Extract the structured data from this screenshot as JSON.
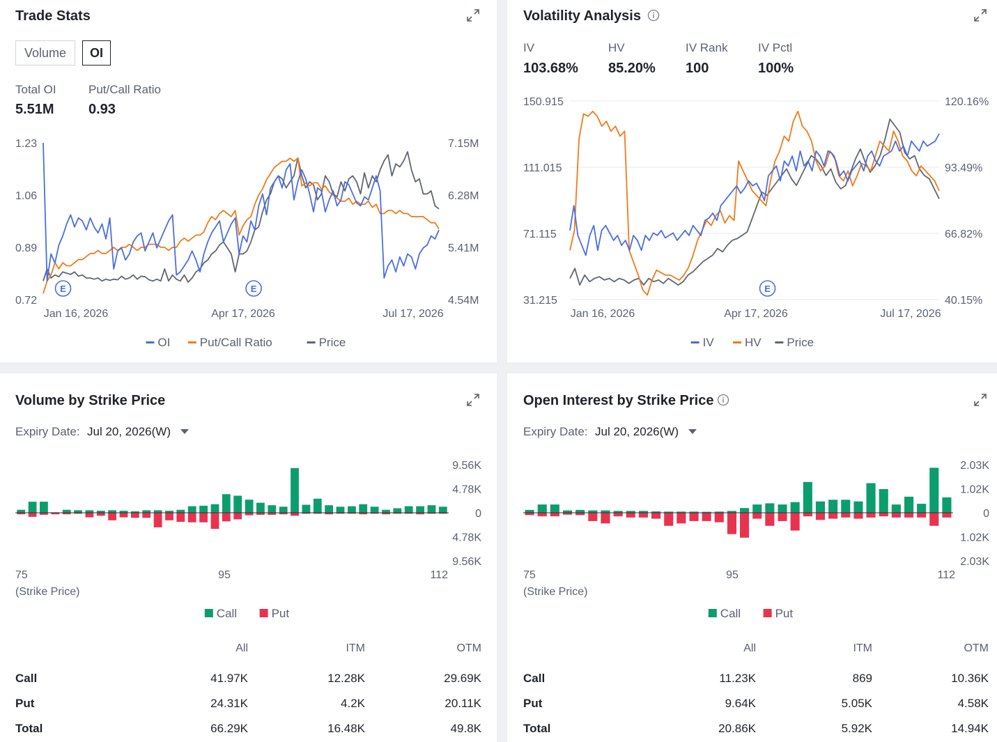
{
  "colors": {
    "blue": "#4a6ee0",
    "orange": "#f07a1a",
    "gray": "#5f6670",
    "green": "#0b9e6c",
    "red": "#e8334f",
    "axis_text": "#5a6170",
    "grid": "#e8eaed"
  },
  "icons": {
    "expand": "expand-icon",
    "info": "info-icon",
    "earnings": "earnings-marker-icon",
    "dropdown": "caret-down-icon"
  },
  "trade_stats": {
    "title": "Trade Stats",
    "segments": [
      "Volume",
      "OI"
    ],
    "active_segment": "OI",
    "total_oi_label": "Total OI",
    "total_oi_value": "5.51M",
    "pcr_label": "Put/Call Ratio",
    "pcr_value": "0.93"
  },
  "volatility": {
    "title": "Volatility Analysis",
    "iv_label": "IV",
    "iv_value": "103.68%",
    "hv_label": "HV",
    "hv_value": "85.20%",
    "ivrank_label": "IV Rank",
    "ivrank_value": "100",
    "ivpctl_label": "IV Pctl",
    "ivpctl_value": "100%"
  },
  "volume_strike": {
    "title": "Volume by Strike Price",
    "expiry_label": "Expiry Date:",
    "expiry_value": "Jul 20, 2026(W)",
    "table": {
      "headers": [
        "All",
        "ITM",
        "OTM"
      ],
      "rows": [
        {
          "label": "Call",
          "all": "41.97K",
          "itm": "12.28K",
          "otm": "29.69K"
        },
        {
          "label": "Put",
          "all": "24.31K",
          "itm": "4.2K",
          "otm": "20.11K"
        },
        {
          "label": "Total",
          "all": "66.29K",
          "itm": "16.48K",
          "otm": "49.8K"
        }
      ]
    }
  },
  "oi_strike": {
    "title": "Open Interest by Strike Price",
    "expiry_label": "Expiry Date:",
    "expiry_value": "Jul 20, 2026(W)",
    "table": {
      "headers": [
        "All",
        "ITM",
        "OTM"
      ],
      "rows": [
        {
          "label": "Call",
          "all": "11.23K",
          "itm": "869",
          "otm": "10.36K"
        },
        {
          "label": "Put",
          "all": "9.64K",
          "itm": "5.05K",
          "otm": "4.58K"
        },
        {
          "label": "Total",
          "all": "20.86K",
          "itm": "5.92K",
          "otm": "14.94K"
        }
      ]
    }
  },
  "chart_data": [
    {
      "type": "line",
      "x_ticks": [
        "Jan 16, 2026",
        "Apr 17, 2026",
        "Jul 17, 2026"
      ],
      "left_axis_ticks": [
        "1.23",
        "1.06",
        "0.89",
        "0.72"
      ],
      "right_axis_ticks": [
        "7.15M",
        "6.28M",
        "5.41M",
        "4.54M"
      ],
      "left_range": [
        0.72,
        1.23
      ],
      "right_range": [
        4.54,
        7.15
      ],
      "right_unit": "M",
      "earnings_markers": [
        "E",
        "E"
      ],
      "earnings_positions": [
        0.05,
        0.53
      ],
      "legend": "bottom-center",
      "grid": false,
      "series": [
        {
          "name": "OI",
          "axis": "right",
          "color": "#4a6ee0",
          "values": [
            7.15,
            4.85,
            5.3,
            5.15,
            5.45,
            5.6,
            5.8,
            5.95,
            5.75,
            5.9,
            5.85,
            5.7,
            5.9,
            5.75,
            5.65,
            5.8,
            5.55,
            5.9,
            5.05,
            5.35,
            5.4,
            5.2,
            5.3,
            5.5,
            5.6,
            5.65,
            5.35,
            5.5,
            5.65,
            5.4,
            5.55,
            5.7,
            5.85,
            5.95,
            4.95,
            5.0,
            5.1,
            5.2,
            5.35,
            5.2,
            5.0,
            5.3,
            5.5,
            5.65,
            5.75,
            5.85,
            5.5,
            5.65,
            5.8,
            5.9,
            5.3,
            5.6,
            5.5,
            5.85,
            5.7,
            6.1,
            6.3,
            5.95,
            6.4,
            6.5,
            6.6,
            6.4,
            6.7,
            6.8,
            6.2,
            6.5,
            6.7,
            6.55,
            6.3,
            6.0,
            6.4,
            6.35,
            6.0,
            6.2,
            6.35,
            6.1,
            6.2,
            6.5,
            6.45,
            6.3,
            6.15,
            6.1,
            6.25,
            6.2,
            6.4,
            6.6,
            6.35,
            4.9,
            5.1,
            5.2,
            5.0,
            5.25,
            5.1,
            5.3,
            5.25,
            5.05,
            5.3,
            5.4,
            5.45,
            5.6,
            5.55,
            5.7
          ]
        },
        {
          "name": "Put/Call Ratio",
          "axis": "left",
          "color": "#f07a1a",
          "values": [
            0.74,
            0.78,
            0.8,
            0.84,
            0.82,
            0.84,
            0.83,
            0.83,
            0.84,
            0.85,
            0.85,
            0.86,
            0.87,
            0.87,
            0.88,
            0.87,
            0.87,
            0.88,
            0.89,
            0.88,
            0.89,
            0.89,
            0.9,
            0.89,
            0.88,
            0.89,
            0.89,
            0.9,
            0.9,
            0.9,
            0.89,
            0.89,
            0.88,
            0.89,
            0.89,
            0.91,
            0.92,
            0.91,
            0.92,
            0.93,
            0.93,
            0.94,
            0.97,
            0.99,
            0.98,
            1.0,
            1.01,
            1.0,
            0.99,
            1.01,
            0.93,
            0.96,
            0.98,
            0.99,
            1.03,
            1.06,
            1.08,
            1.11,
            1.13,
            1.15,
            1.16,
            1.17,
            1.17,
            1.18,
            1.17,
            1.18,
            1.09,
            1.1,
            1.09,
            1.1,
            1.1,
            1.08,
            1.09,
            1.07,
            1.06,
            1.05,
            1.04,
            1.04,
            1.05,
            1.03,
            1.04,
            1.03,
            1.03,
            1.04,
            1.02,
            1.03,
            1.0,
            1.0,
            1.01,
            1.01,
            1.0,
            1.01,
            1.0,
            1.0,
            0.99,
            0.99,
            0.99,
            0.99,
            0.98,
            0.97,
            0.97,
            0.95
          ]
        },
        {
          "name": "Price",
          "axis": "right",
          "color": "#5f6670",
          "values": [
            4.85,
            5.05,
            4.9,
            4.95,
            4.92,
            5.0,
            4.98,
            4.96,
            5.0,
            4.93,
            4.95,
            4.9,
            4.9,
            4.88,
            4.9,
            4.85,
            4.88,
            4.86,
            4.88,
            4.87,
            4.93,
            4.88,
            4.9,
            4.95,
            4.88,
            4.93,
            4.92,
            4.87,
            4.85,
            4.88,
            4.85,
            5.05,
            4.85,
            4.95,
            4.88,
            4.85,
            4.95,
            4.83,
            4.9,
            5.0,
            5.05,
            5.15,
            5.2,
            5.3,
            5.35,
            5.45,
            5.5,
            5.4,
            5.3,
            5.0,
            5.3,
            5.3,
            5.35,
            5.5,
            5.7,
            5.75,
            6.0,
            6.2,
            6.3,
            6.5,
            6.6,
            6.55,
            6.4,
            6.5,
            6.6,
            6.9,
            6.6,
            6.4,
            6.5,
            6.45,
            6.2,
            6.3,
            6.6,
            6.5,
            6.3,
            6.25,
            6.5,
            6.35,
            6.55,
            6.6,
            6.5,
            6.3,
            6.65,
            6.4,
            6.6,
            6.5,
            6.7,
            6.85,
            6.95,
            6.6,
            6.8,
            6.75,
            6.85,
            7.0,
            6.7,
            6.5,
            6.55,
            6.3,
            6.3,
            6.35,
            6.1,
            6.05
          ]
        }
      ]
    },
    {
      "type": "line",
      "x_ticks": [
        "Jan 16, 2026",
        "Apr 17, 2026",
        "Jul 17, 2026"
      ],
      "left_axis_ticks": [
        "150.915",
        "111.015",
        "71.115",
        "31.215"
      ],
      "right_axis_ticks": [
        "120.16%",
        "93.49%",
        "66.82%",
        "40.15%"
      ],
      "left_range": [
        31.215,
        150.915
      ],
      "right_range": [
        40.15,
        120.16
      ],
      "earnings_markers": [
        "E"
      ],
      "earnings_positions": [
        0.535
      ],
      "legend": "bottom-center",
      "grid": true,
      "series": [
        {
          "name": "IV",
          "axis": "right",
          "color": "#4a6ee0",
          "values": [
            68,
            78,
            66,
            62,
            58,
            66,
            70,
            60,
            68,
            70,
            67,
            64,
            66,
            62,
            64,
            60,
            66,
            64,
            60,
            66,
            64,
            67,
            66,
            68,
            65,
            66,
            67,
            64,
            66,
            68,
            66,
            70,
            68,
            66,
            72,
            73,
            75,
            72,
            78,
            80,
            82,
            84,
            86,
            83,
            85,
            88,
            86,
            87,
            84,
            80,
            90,
            92,
            94,
            88,
            96,
            94,
            98,
            92,
            100,
            94,
            96,
            92,
            100,
            98,
            94,
            100,
            99,
            96,
            90,
            92,
            88,
            92,
            94,
            96,
            92,
            98,
            100,
            96,
            94,
            98,
            99,
            100,
            104,
            100,
            102,
            98,
            104,
            102,
            100,
            104,
            102,
            103,
            104,
            107
          ]
        },
        {
          "name": "HV",
          "axis": "right",
          "color": "#f07a1a",
          "values": [
            60,
            68,
            105,
            115,
            114,
            116,
            114,
            110,
            112,
            108,
            110,
            106,
            108,
            60,
            55,
            50,
            44,
            42,
            48,
            52,
            51,
            50,
            50,
            49,
            48,
            50,
            53,
            58,
            64,
            68,
            72,
            70,
            74,
            76,
            71,
            74,
            72,
            96,
            92,
            88,
            84,
            82,
            80,
            78,
            88,
            96,
            100,
            106,
            104,
            112,
            116,
            110,
            108,
            104,
            96,
            92,
            94,
            100,
            98,
            90,
            88,
            92,
            86,
            90,
            95,
            94,
            92,
            98,
            104,
            102,
            100,
            108,
            104,
            98,
            96,
            92,
            90,
            94,
            92,
            90,
            88,
            84
          ]
        },
        {
          "name": "Price",
          "axis": "left",
          "color": "#5f6670",
          "values": [
            44,
            50,
            40,
            46,
            42,
            44,
            45,
            43,
            44,
            42,
            44,
            43,
            41,
            43,
            44,
            40,
            44,
            42,
            43,
            41,
            44,
            42,
            40,
            42,
            46,
            48,
            51,
            54,
            56,
            58,
            62,
            60,
            64,
            67,
            68,
            70,
            72,
            80,
            88,
            96,
            94,
            98,
            102,
            106,
            110,
            104,
            100,
            106,
            112,
            118,
            116,
            112,
            106,
            110,
            102,
            98,
            100,
            108,
            116,
            122,
            114,
            108,
            112,
            118,
            128,
            140,
            136,
            132,
            120,
            116,
            118,
            110,
            106,
            104,
            98,
            92
          ]
        }
      ]
    },
    {
      "type": "bar",
      "x_ticks": [
        "75",
        "95",
        "112"
      ],
      "x_axis_caption": "(Strike Price)",
      "y_ticks": [
        "9.56K",
        "4.78K",
        "0",
        "4.78K",
        "9.56K"
      ],
      "y_range": [
        -9.56,
        9.56
      ],
      "y_unit": "K",
      "legend": "bottom-center",
      "series": [
        {
          "name": "Call",
          "color": "#0b9e6c",
          "values": [
            0.6,
            2.2,
            2.2,
            0.1,
            0.6,
            0.5,
            0.5,
            0.4,
            0.5,
            0.4,
            0.3,
            0.5,
            0.5,
            0.4,
            0.6,
            1.3,
            1.4,
            1.7,
            3.7,
            3.4,
            2.6,
            2.0,
            1.5,
            1.2,
            8.9,
            1.6,
            2.8,
            1.5,
            1.2,
            1.3,
            1.7,
            1.2,
            0.6,
            0.9,
            1.3,
            1.3,
            1.5,
            1.2
          ]
        },
        {
          "name": "Put",
          "color": "#e8334f",
          "values": [
            0.3,
            0.8,
            0.4,
            0.3,
            0.3,
            0.2,
            0.9,
            0.6,
            1.5,
            0.9,
            1.0,
            1.0,
            2.9,
            1.5,
            1.8,
            1.9,
            1.9,
            3.2,
            1.7,
            1.3,
            0.5,
            0.4,
            0.4,
            0.3,
            0.6,
            0.2,
            0.2,
            0.3,
            0.2,
            0.2,
            0.3,
            0.2,
            0.3,
            0.2,
            0.2,
            0.3,
            0.2,
            0.2
          ]
        }
      ]
    },
    {
      "type": "bar",
      "x_ticks": [
        "75",
        "95",
        "112"
      ],
      "x_axis_caption": "(Strike Price)",
      "y_ticks": [
        "2.03K",
        "1.02K",
        "0",
        "1.02K",
        "2.03K"
      ],
      "y_range": [
        -2.03,
        2.03
      ],
      "y_unit": "K",
      "legend": "bottom-center",
      "series": [
        {
          "name": "Call",
          "color": "#0b9e6c",
          "values": [
            0.12,
            0.35,
            0.35,
            0.1,
            0.12,
            0.1,
            0.1,
            0.08,
            0.08,
            0.08,
            0.06,
            0.05,
            0.05,
            0.05,
            0.04,
            0.05,
            0.08,
            0.2,
            0.35,
            0.4,
            0.35,
            0.45,
            1.3,
            0.48,
            0.55,
            0.55,
            0.48,
            1.25,
            1.0,
            0.35,
            0.68,
            0.38,
            1.9,
            0.65
          ]
        },
        {
          "name": "Put",
          "color": "#e8334f",
          "values": [
            0.1,
            0.15,
            0.15,
            0.08,
            0.1,
            0.35,
            0.45,
            0.15,
            0.2,
            0.2,
            0.25,
            0.55,
            0.45,
            0.35,
            0.35,
            0.4,
            0.9,
            1.05,
            0.25,
            0.55,
            0.35,
            0.75,
            0.15,
            0.3,
            0.25,
            0.2,
            0.25,
            0.2,
            0.15,
            0.2,
            0.2,
            0.2,
            0.55,
            0.2
          ]
        }
      ]
    }
  ]
}
